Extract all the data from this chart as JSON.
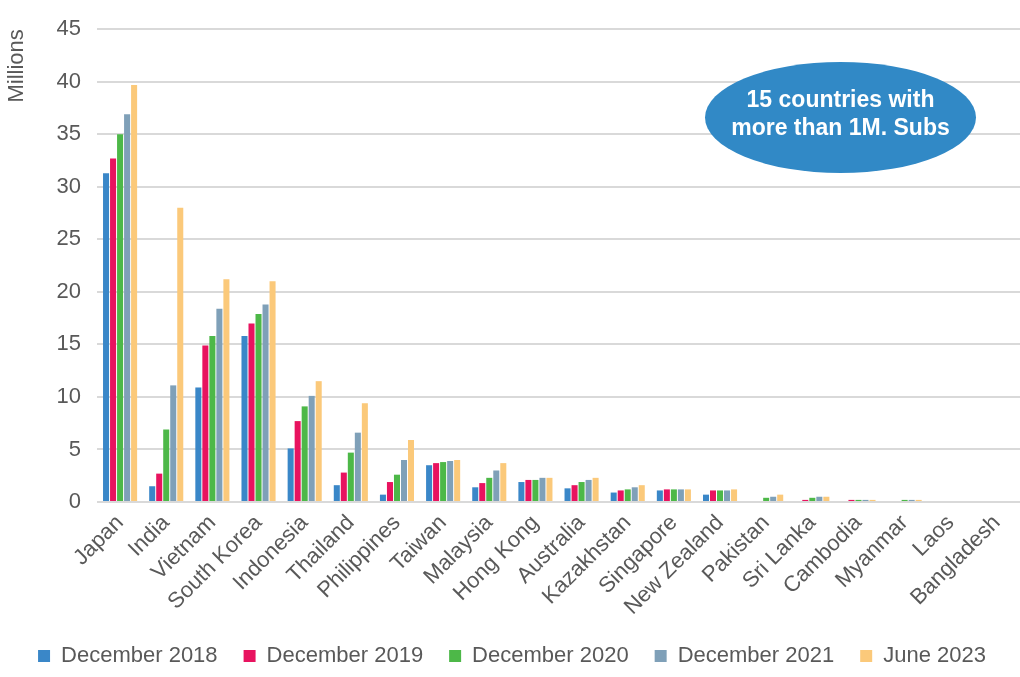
{
  "chart_data": {
    "type": "bar",
    "ylabel": "Millions",
    "categories": [
      "Japan",
      "India",
      "Vietnam",
      "South Korea",
      "Indonesia",
      "Thailand",
      "Philippines",
      "Taiwan",
      "Malaysia",
      "Hong Kong",
      "Australia",
      "Kazakhstan",
      "Singapore",
      "New Zealand",
      "Pakistan",
      "Sri Lanka",
      "Cambodia",
      "Myanmar",
      "Laos",
      "Bangladesh"
    ],
    "series": [
      {
        "name": "December 2018",
        "color": "#3a87c8",
        "values": [
          31.3,
          1.5,
          10.9,
          15.8,
          5.1,
          1.6,
          0.7,
          3.5,
          1.4,
          1.9,
          1.3,
          0.9,
          1.1,
          0.7,
          null,
          null,
          null,
          null,
          null,
          null
        ]
      },
      {
        "name": "December 2019",
        "color": "#e8135f",
        "values": [
          32.7,
          2.7,
          14.9,
          17.0,
          7.7,
          2.8,
          1.9,
          3.7,
          1.8,
          2.1,
          1.6,
          1.1,
          1.2,
          1.1,
          null,
          0.2,
          0.2,
          null,
          null,
          null
        ]
      },
      {
        "name": "December 2020",
        "color": "#4db848",
        "values": [
          35.0,
          6.9,
          15.8,
          17.9,
          9.1,
          4.7,
          2.6,
          3.8,
          2.3,
          2.1,
          1.9,
          1.2,
          1.2,
          1.1,
          0.4,
          0.4,
          0.2,
          0.2,
          null,
          null
        ]
      },
      {
        "name": "December 2021",
        "color": "#7fa0b8",
        "values": [
          36.9,
          11.1,
          18.4,
          18.8,
          10.1,
          6.6,
          4.0,
          3.9,
          3.0,
          2.3,
          2.1,
          1.4,
          1.2,
          1.1,
          0.5,
          0.5,
          0.2,
          0.2,
          null,
          null
        ]
      },
      {
        "name": "June 2023",
        "color": "#fbc97a",
        "values": [
          39.7,
          28.0,
          21.2,
          21.0,
          11.5,
          9.4,
          5.9,
          4.0,
          3.7,
          2.3,
          2.3,
          1.6,
          1.2,
          1.2,
          0.7,
          0.5,
          0.2,
          0.2,
          null,
          null
        ]
      }
    ],
    "ylim": [
      0,
      45
    ],
    "yticks": [
      0,
      5,
      10,
      15,
      20,
      25,
      30,
      35,
      40,
      45
    ],
    "grid": "y",
    "legend": "bottom",
    "annotations": [
      "15 countries with more than 1M. Subs"
    ]
  }
}
